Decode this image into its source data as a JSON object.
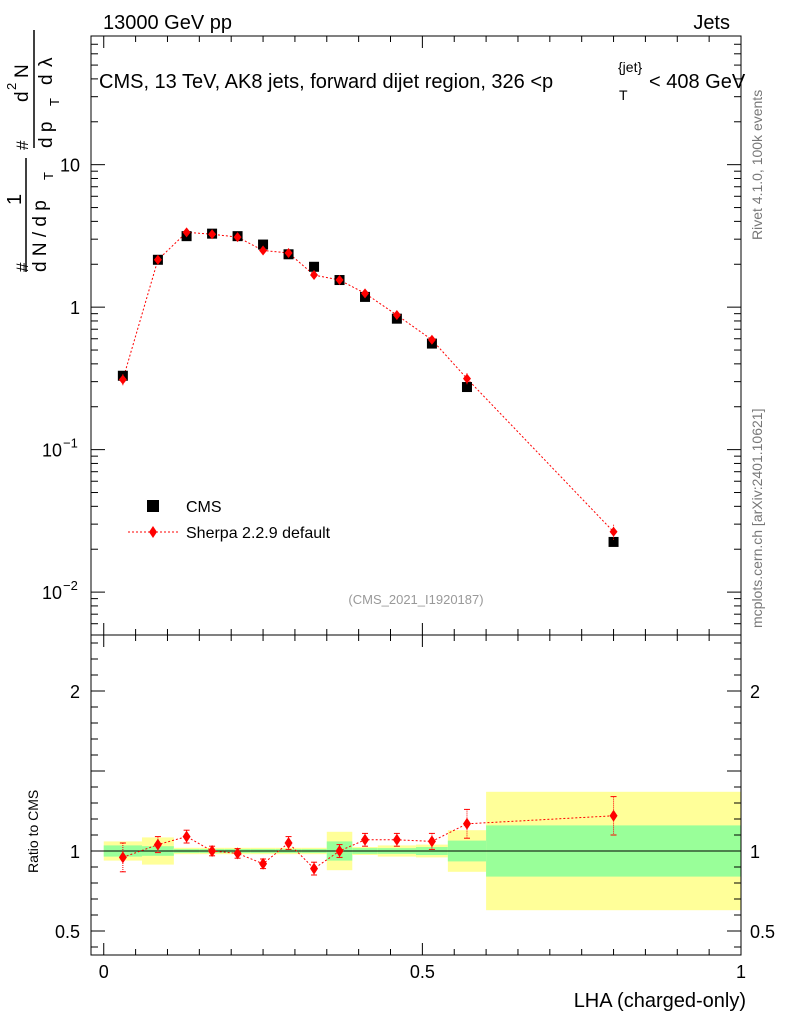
{
  "header": {
    "energy_label": "13000 GeV pp",
    "process_label": "Jets"
  },
  "side_labels": {
    "rivet": "Rivet 4.1.0,  100k events",
    "source": "mcplots.cern.ch [arXiv:2401.10621]"
  },
  "chart_data": {
    "type": "scatter",
    "title": "CMS, 13 TeV, AK8 jets, forward dijet region, 326 <p",
    "title_sub": "T",
    "title_sup": "{jet}",
    "title_tail": "< 408 GeV",
    "analysis_id": "(CMS_2021_I1920187)",
    "xlabel": "LHA (charged-only)",
    "ylabel_main": "1/dN/dp_T  d^2N/dp_T dλ",
    "ylabel_parts": [
      "#",
      "1",
      "d N / d p",
      "T",
      "#",
      "d",
      "2",
      "N",
      "d p",
      "T",
      "d",
      "λ"
    ],
    "ylabel_ratio": "Ratio to CMS",
    "xlim": [
      -0.02,
      1.0
    ],
    "ylim_main": [
      0.005,
      80
    ],
    "ylim_ratio": [
      0.35,
      2.35
    ],
    "x_ticks": [
      {
        "value": 0,
        "label": "0"
      },
      {
        "value": 0.5,
        "label": "0.5"
      },
      {
        "value": 1,
        "label": "1"
      }
    ],
    "y_ticks_main": [
      {
        "value": 10,
        "label": "10"
      },
      {
        "value": 1,
        "label": "1"
      },
      {
        "value": 0.1,
        "label": "10",
        "exp": "−1"
      },
      {
        "value": 0.01,
        "label": "10",
        "exp": "−2"
      }
    ],
    "y_ticks_ratio": [
      {
        "value": 2,
        "label": "2"
      },
      {
        "value": 1,
        "label": "1"
      },
      {
        "value": 0.5,
        "label": "0.5"
      }
    ],
    "legend": [
      {
        "name": "CMS",
        "marker": "square",
        "color": "#000000"
      },
      {
        "name": "Sherpa 2.2.9 default",
        "marker": "diamond",
        "color": "#ff0000"
      }
    ],
    "bins": [
      {
        "lo": 0.0,
        "hi": 0.06
      },
      {
        "lo": 0.06,
        "hi": 0.11
      },
      {
        "lo": 0.11,
        "hi": 0.15
      },
      {
        "lo": 0.15,
        "hi": 0.19
      },
      {
        "lo": 0.19,
        "hi": 0.23
      },
      {
        "lo": 0.23,
        "hi": 0.27
      },
      {
        "lo": 0.27,
        "hi": 0.31
      },
      {
        "lo": 0.31,
        "hi": 0.35
      },
      {
        "lo": 0.35,
        "hi": 0.39
      },
      {
        "lo": 0.39,
        "hi": 0.43
      },
      {
        "lo": 0.43,
        "hi": 0.49
      },
      {
        "lo": 0.49,
        "hi": 0.54
      },
      {
        "lo": 0.54,
        "hi": 0.6
      },
      {
        "lo": 0.6,
        "hi": 1.0
      }
    ],
    "series": [
      {
        "name": "CMS",
        "x": [
          0.03,
          0.085,
          0.13,
          0.17,
          0.21,
          0.25,
          0.29,
          0.33,
          0.37,
          0.41,
          0.46,
          0.515,
          0.57,
          0.8
        ],
        "y": [
          0.33,
          2.15,
          3.15,
          3.28,
          3.15,
          2.75,
          2.35,
          1.92,
          1.55,
          1.18,
          0.83,
          0.555,
          0.275,
          0.0225
        ],
        "stat_band": [
          0.035,
          0.03,
          0.012,
          0.012,
          0.012,
          0.012,
          0.012,
          0.012,
          0.06,
          0.018,
          0.018,
          0.025,
          0.065,
          0.16
        ],
        "total_band": [
          0.06,
          0.085,
          0.02,
          0.02,
          0.02,
          0.02,
          0.02,
          0.02,
          0.12,
          0.025,
          0.035,
          0.04,
          0.13,
          0.37
        ]
      },
      {
        "name": "Sherpa 2.2.9 default",
        "x": [
          0.03,
          0.085,
          0.13,
          0.17,
          0.21,
          0.25,
          0.29,
          0.33,
          0.37,
          0.41,
          0.46,
          0.515,
          0.57,
          0.8
        ],
        "y": [
          0.31,
          2.15,
          3.35,
          3.25,
          3.1,
          2.5,
          2.4,
          1.68,
          1.55,
          1.25,
          0.88,
          0.59,
          0.315,
          0.0265
        ],
        "ratio": [
          0.96,
          1.04,
          1.09,
          1.0,
          0.985,
          0.92,
          1.05,
          0.89,
          1.0,
          1.07,
          1.07,
          1.06,
          1.17,
          1.22
        ],
        "ratio_err": [
          0.09,
          0.05,
          0.04,
          0.03,
          0.03,
          0.03,
          0.04,
          0.04,
          0.04,
          0.04,
          0.04,
          0.05,
          0.09,
          0.12
        ]
      }
    ]
  }
}
